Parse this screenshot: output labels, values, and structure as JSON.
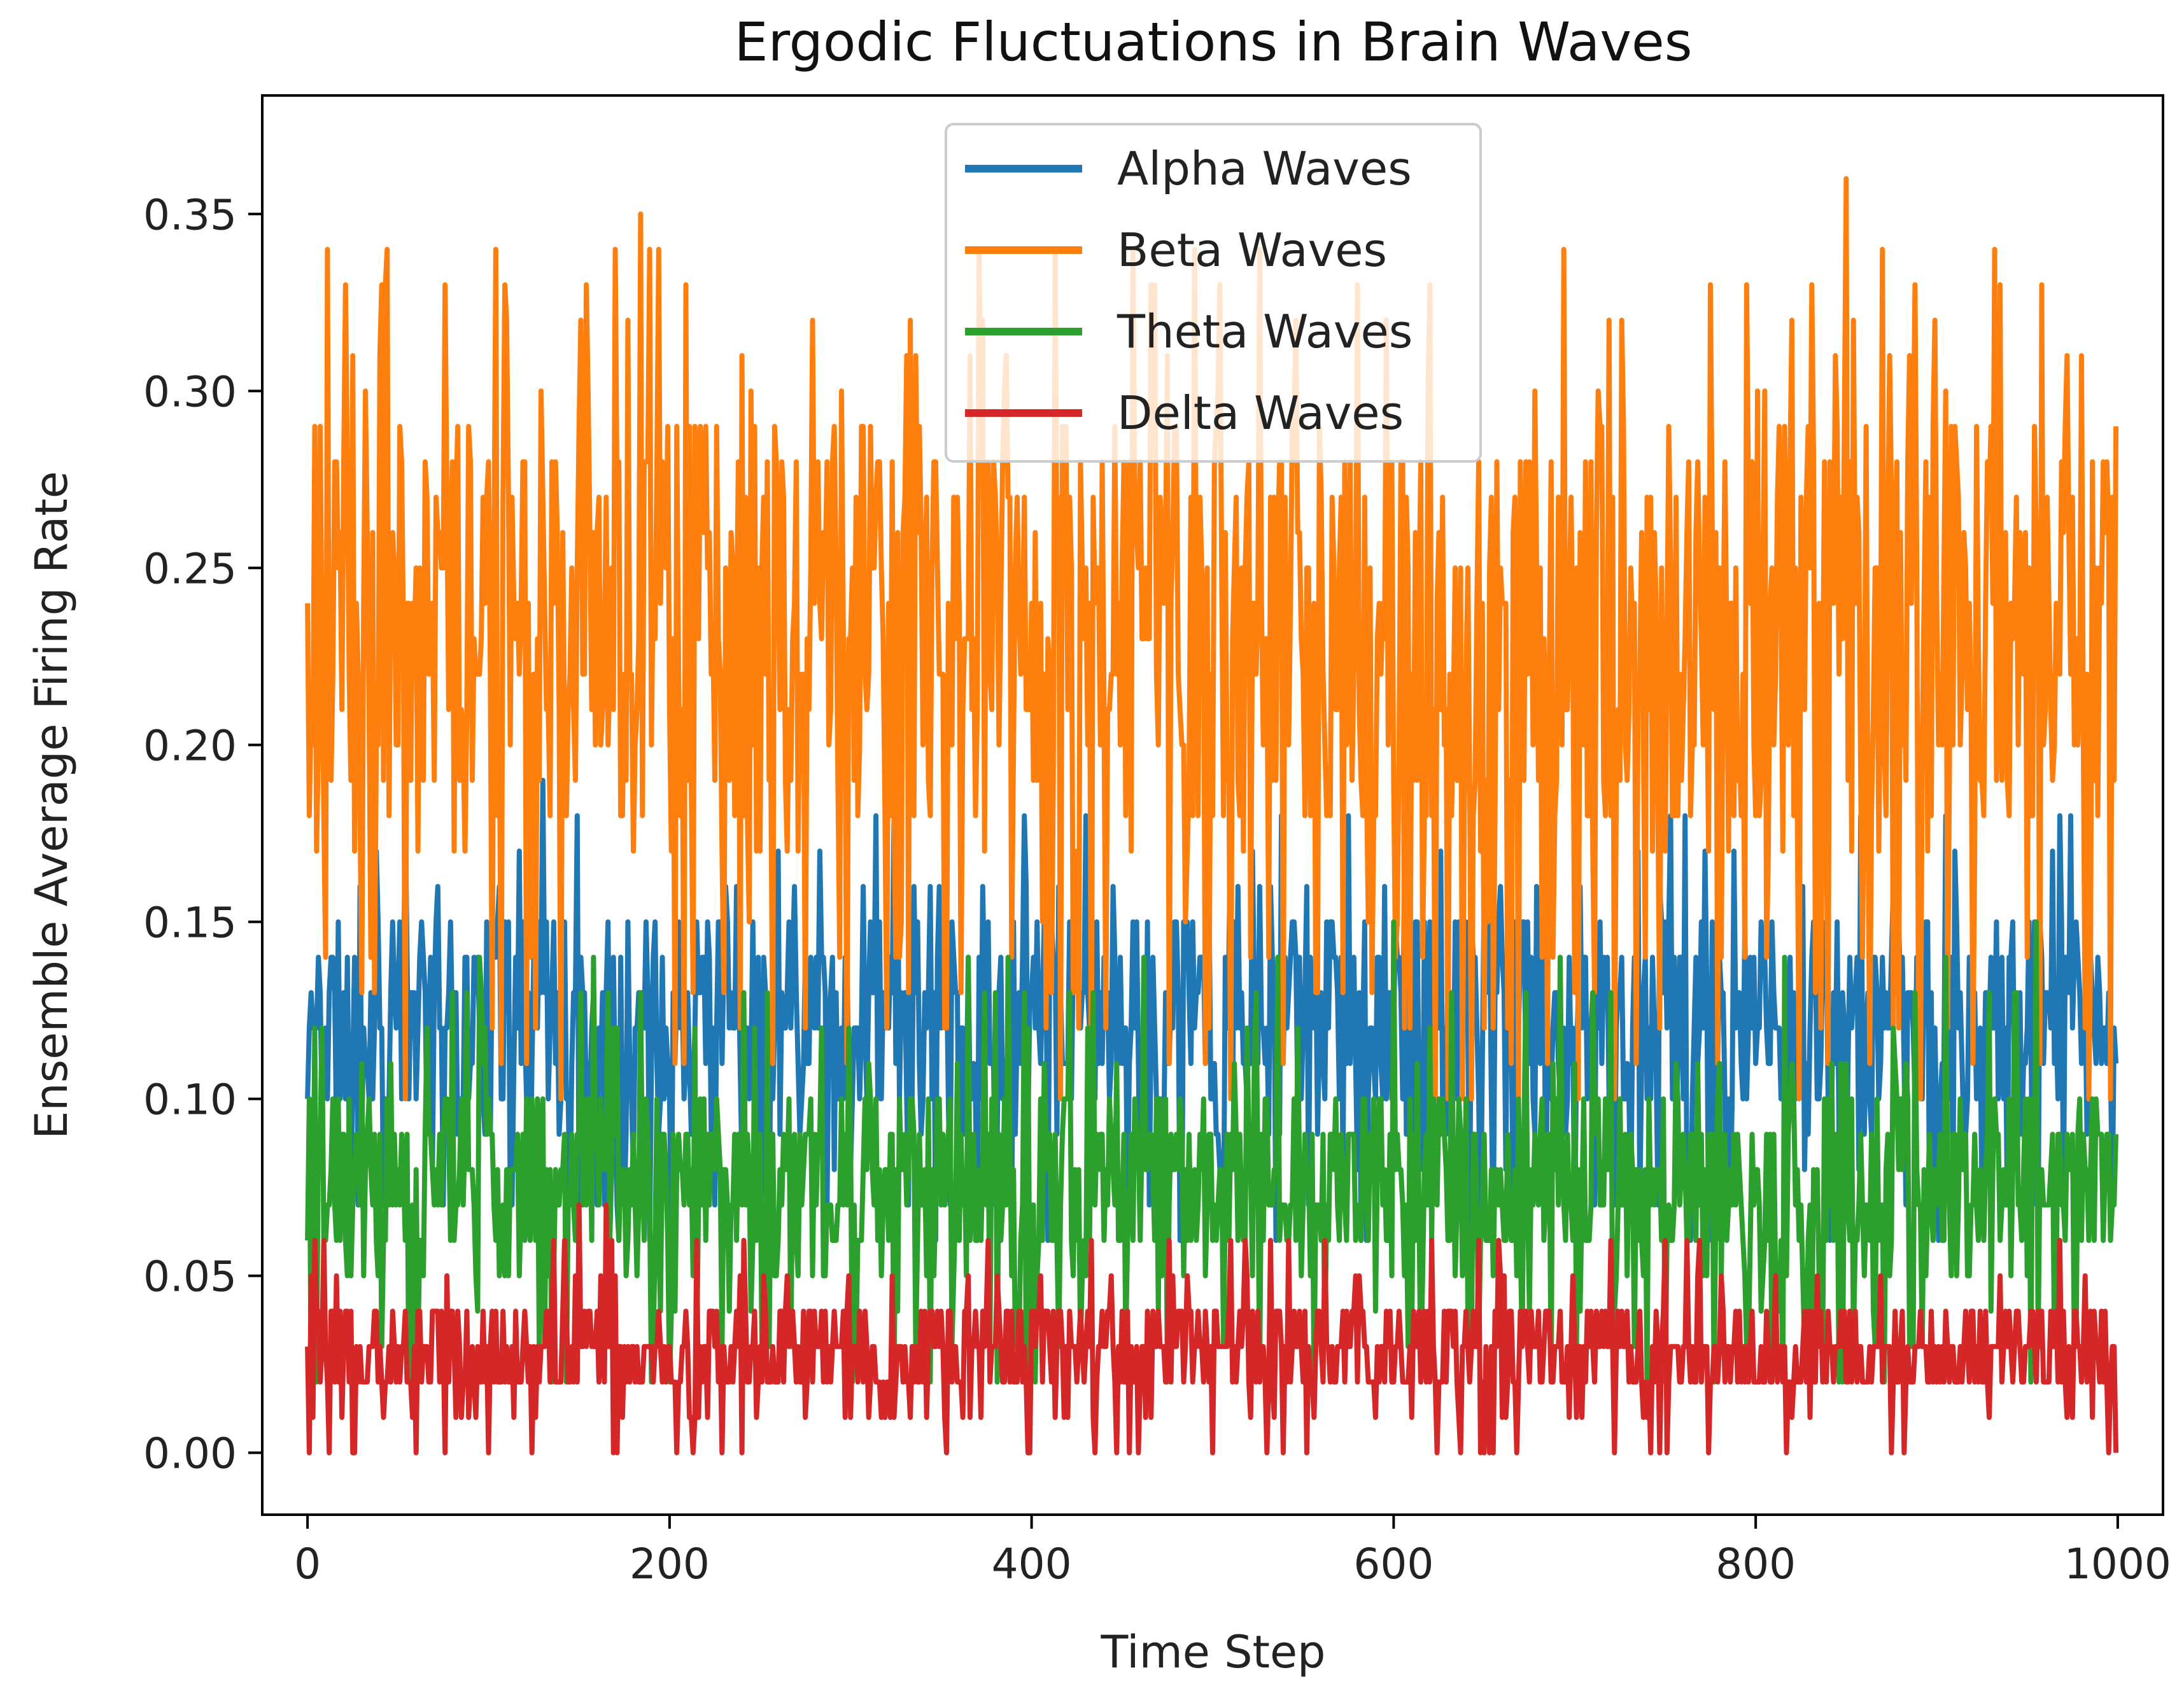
{
  "chart_data": {
    "type": "line",
    "title": "Ergodic Fluctuations in Brain Waves",
    "xlabel": "Time Step",
    "ylabel": "Ensemble Average Firing Rate",
    "xlim": [
      -25,
      1025
    ],
    "ylim": [
      -0.0175,
      0.3835
    ],
    "x_ticks": [
      0,
      200,
      400,
      600,
      800,
      1000
    ],
    "x_tick_labels": [
      "0",
      "200",
      "400",
      "600",
      "800",
      "1000"
    ],
    "y_ticks": [
      0.0,
      0.05,
      0.1,
      0.15,
      0.2,
      0.25,
      0.3,
      0.35
    ],
    "y_tick_labels": [
      "0.00",
      "0.05",
      "0.10",
      "0.15",
      "0.20",
      "0.25",
      "0.30",
      "0.35"
    ],
    "grid": false,
    "legend": {
      "location": "upper center",
      "entries": [
        "Alpha Waves",
        "Beta Waves",
        "Theta Waves",
        "Delta Waves"
      ]
    },
    "x_range": [
      0,
      999
    ],
    "series": [
      {
        "name": "Alpha Waves",
        "color": "#1f77b4",
        "min": 0.06,
        "max": 0.19,
        "typical_low": 0.08,
        "typical_high": 0.15,
        "start_value": 0.1,
        "notable_points": [
          [
            130,
            0.19
          ],
          [
            430,
            0.18
          ],
          [
            260,
            0.17
          ],
          [
            910,
            0.17
          ],
          [
            575,
            0.18
          ],
          [
            150,
            0.07
          ],
          [
            655,
            0.06
          ]
        ]
      },
      {
        "name": "Beta Waves",
        "color": "#ff7f0e",
        "min": 0.1,
        "max": 0.36,
        "typical_low": 0.15,
        "typical_high": 0.29,
        "start_value": 0.24,
        "notable_points": [
          [
            170,
            0.34
          ],
          [
            850,
            0.36
          ],
          [
            935,
            0.33
          ],
          [
            580,
            0.33
          ],
          [
            620,
            0.33
          ],
          [
            25,
            0.31
          ],
          [
            40,
            0.31
          ],
          [
            240,
            0.31
          ],
          [
            385,
            0.3
          ],
          [
            820,
            0.32
          ],
          [
            980,
            0.31
          ],
          [
            10,
            0.14
          ],
          [
            630,
            0.1
          ],
          [
            665,
            0.11
          ],
          [
            275,
            0.12
          ],
          [
            985,
            0.14
          ]
        ]
      },
      {
        "name": "Theta Waves",
        "color": "#2ca02c",
        "min": 0.02,
        "max": 0.15,
        "typical_low": 0.04,
        "typical_high": 0.1,
        "start_value": 0.06,
        "notable_points": [
          [
            600,
            0.15
          ],
          [
            955,
            0.15
          ],
          [
            88,
            0.13
          ],
          [
            95,
            0.14
          ],
          [
            380,
            0.13
          ],
          [
            5,
            0.02
          ],
          [
            190,
            0.02
          ]
        ]
      },
      {
        "name": "Delta Waves",
        "color": "#d62728",
        "min": 0.0,
        "max": 0.07,
        "typical_low": 0.01,
        "typical_high": 0.04,
        "start_value": 0.03,
        "notable_points": [
          [
            150,
            0.07
          ],
          [
            165,
            0.07
          ],
          [
            25,
            0.0
          ],
          [
            60,
            0.0
          ],
          [
            500,
            0.0
          ],
          [
            995,
            0.0
          ]
        ]
      }
    ]
  }
}
